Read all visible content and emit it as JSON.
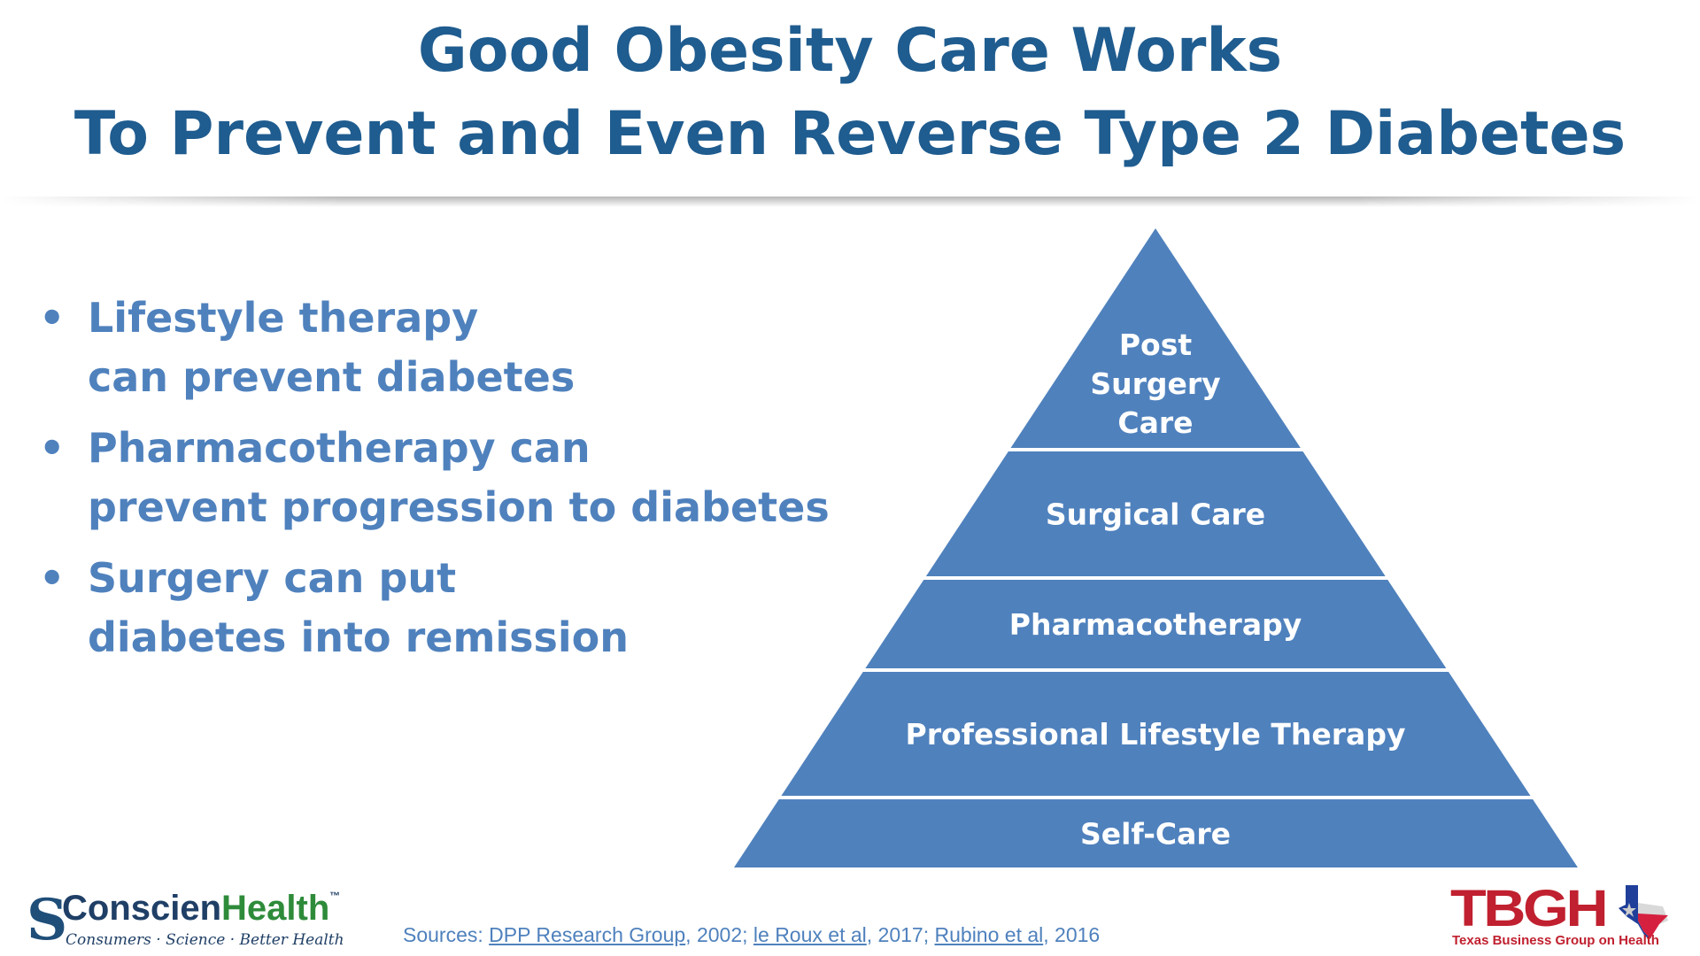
{
  "title": {
    "line1": "Good Obesity Care Works",
    "line2": "To Prevent and Even Reverse Type 2 Diabetes"
  },
  "bullets": [
    {
      "line1": "Lifestyle therapy",
      "line2": "can prevent diabetes"
    },
    {
      "line1": "Pharmacotherapy can",
      "line2": "prevent progression to diabetes"
    },
    {
      "line1": "Surgery can put",
      "line2": "diabetes into remission"
    }
  ],
  "bullet_symbol": "•",
  "pyramid": {
    "color": "#4F81BD",
    "levels": [
      {
        "label_lines": [
          "Post",
          "Surgery",
          "Care"
        ]
      },
      {
        "label_lines": [
          "Surgical Care"
        ]
      },
      {
        "label_lines": [
          "Pharmacotherapy"
        ]
      },
      {
        "label_lines": [
          "Professional Lifestyle Therapy"
        ]
      },
      {
        "label_lines": [
          "Self-Care"
        ]
      }
    ]
  },
  "sources": {
    "prefix": "Sources: ",
    "refs": [
      {
        "link": "DPP Research Group",
        "year": ", 2002; "
      },
      {
        "link": "le Roux et al",
        "year": ", 2017; "
      },
      {
        "link": "Rubino et al",
        "year": ", 2016"
      }
    ]
  },
  "logos": {
    "conscienhealth": {
      "s": "S",
      "name_a": "Conscien",
      "name_b": "Health",
      "tm": "™",
      "tagline": "Consumers · Science · Better Health"
    },
    "tbgh": {
      "letters": "TBGH",
      "subtitle": "Texas Business Group on Health"
    }
  }
}
